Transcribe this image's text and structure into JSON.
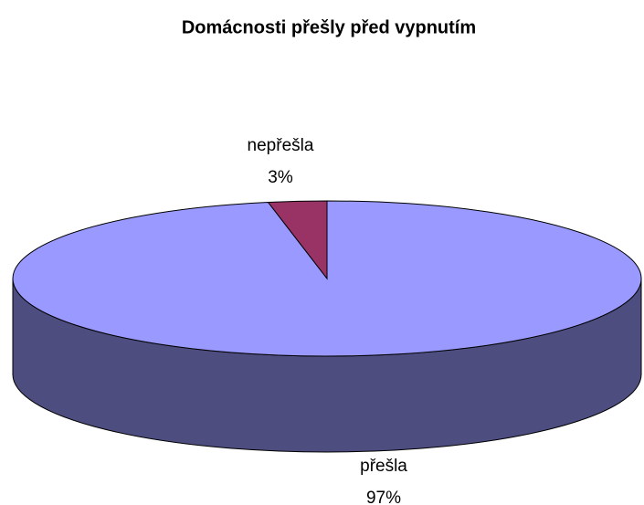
{
  "chart_data": {
    "type": "pie",
    "title": "Domácnosti přešly před vypnutím",
    "categories": [
      "přešla",
      "nepřešla"
    ],
    "values": [
      97,
      3
    ],
    "value_labels": [
      "97%",
      "3%"
    ],
    "colors": [
      "#9999ff",
      "#993366"
    ]
  }
}
